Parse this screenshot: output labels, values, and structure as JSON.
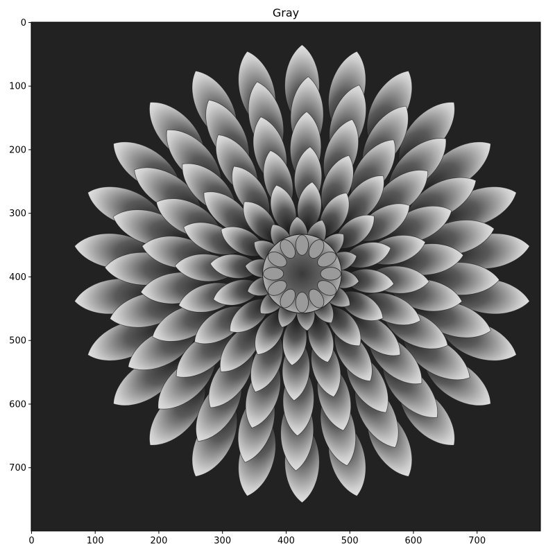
{
  "title": "Gray",
  "image": {
    "description_name": "grayscale dahlia flower",
    "colormap": "gray",
    "background_color": "#222222"
  },
  "axes": {
    "x_range": [
      0,
      799
    ],
    "y_range": [
      0,
      799
    ],
    "x_ticks": [
      0,
      100,
      200,
      300,
      400,
      500,
      600,
      700
    ],
    "y_ticks": [
      0,
      100,
      200,
      300,
      400,
      500,
      600,
      700
    ],
    "y_inverted": true
  }
}
